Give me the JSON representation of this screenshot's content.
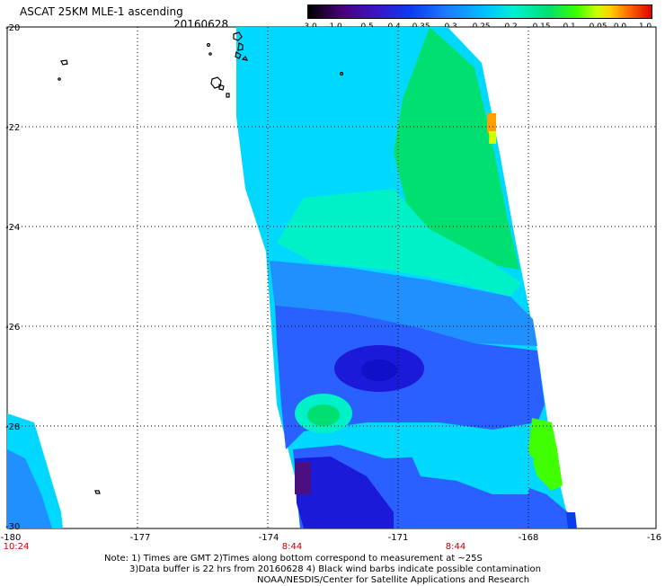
{
  "header": {
    "title": "ASCAT 25KM MLE-1 ascending",
    "date": "20160628"
  },
  "colorbar": {
    "labels": [
      "-3.0",
      "-1.0",
      "-0.5",
      "-0.4",
      "-0.35",
      "-0.3",
      "-0.25",
      "-0.2",
      "-0.15",
      "-0.1",
      "-0.05",
      "0.0",
      "1.0"
    ]
  },
  "axes": {
    "lat_labels": [
      "-20",
      "-22",
      "-24",
      "-26",
      "-28",
      "-30"
    ],
    "lon_labels": [
      "-180",
      "-177",
      "-174",
      "-171",
      "-168",
      "-16"
    ],
    "time_labels": [
      "10:24",
      "8:44",
      "8:44"
    ]
  },
  "notes": [
    "Note: 1) Times are GMT 2)Times along bottom correspond to measurement at ~25S",
    "3)Data buffer is 22 hrs from 20160628 4) Black wind barbs indicate possible contamination",
    "NOAA/NESDIS/Center for Satellite Applications and Research"
  ],
  "colors": {
    "deep_blue": "#1a1ad8",
    "blue": "#2a60ff",
    "light_blue": "#2090ff",
    "cyan": "#00d8ff",
    "aqua": "#00f0c8",
    "green": "#00e070",
    "bright_green": "#40ff00",
    "orange": "#ffa000",
    "purple": "#4a1080"
  }
}
